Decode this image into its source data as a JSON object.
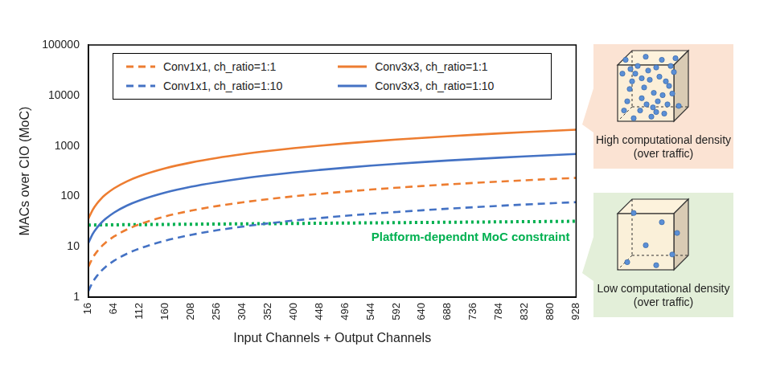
{
  "chart_data": {
    "type": "line",
    "x_label": "Input Channels + Output Channels",
    "y_label": "MACs over CIO (MoC)",
    "x": [
      16,
      24,
      32,
      40,
      48,
      64,
      88,
      112,
      160,
      208,
      256,
      304,
      352,
      400,
      448,
      496,
      544,
      592,
      640,
      688,
      736,
      784,
      832,
      880,
      928
    ],
    "series": [
      {
        "name": "Conv1x1, ch_ratio=1:1",
        "color": "#ed7d31",
        "line_style": "dashed",
        "marker": "none",
        "values": [
          4,
          6,
          8,
          10,
          12,
          16,
          22,
          28,
          40,
          52,
          64,
          76,
          88,
          100,
          112,
          124,
          136,
          148,
          160,
          172,
          184,
          196,
          208,
          220,
          232
        ]
      },
      {
        "name": "Conv3x3, ch_ratio=1:1",
        "color": "#ed7d31",
        "line_style": "solid",
        "marker": "none",
        "values": [
          36,
          54,
          72,
          90,
          108,
          144,
          198,
          252,
          360,
          468,
          576,
          684,
          792,
          900,
          1008,
          1116,
          1224,
          1332,
          1440,
          1548,
          1656,
          1764,
          1872,
          1980,
          2088
        ]
      },
      {
        "name": "Conv1x1, ch_ratio=1:10",
        "color": "#4472c4",
        "line_style": "dashed",
        "marker": "none",
        "values": [
          1.32,
          1.98,
          2.64,
          3.31,
          3.97,
          5.29,
          7.27,
          9.26,
          13.2,
          17.2,
          21.2,
          25.1,
          29.1,
          33.1,
          37.0,
          41.0,
          45.0,
          48.9,
          52.9,
          56.9,
          60.8,
          64.8,
          68.8,
          72.7,
          76.7
        ]
      },
      {
        "name": "Conv3x3, ch_ratio=1:10",
        "color": "#4472c4",
        "line_style": "solid",
        "marker": "none",
        "values": [
          11.9,
          17.9,
          23.8,
          29.8,
          35.7,
          47.6,
          65.5,
          83.3,
          119,
          155,
          190,
          226,
          262,
          298,
          333,
          369,
          405,
          440,
          476,
          512,
          547,
          583,
          619,
          655,
          690
        ]
      }
    ],
    "constraint": {
      "label": "Platform-dependnt MoC constraint",
      "x": [
        16,
        928
      ],
      "values": [
        27,
        32
      ],
      "color": "#00b050",
      "line_style": "dotted"
    },
    "callouts": [
      {
        "text": "High computational density (over traffic)",
        "color": "#fbe3d3"
      },
      {
        "text": "Low computational density (over traffic)",
        "color": "#e3efd9"
      }
    ],
    "xlim": [
      16,
      928
    ],
    "xticks": [
      16,
      64,
      112,
      160,
      208,
      256,
      304,
      352,
      400,
      448,
      496,
      544,
      592,
      640,
      688,
      736,
      784,
      832,
      880,
      928
    ],
    "ylim": [
      1,
      100000
    ],
    "yticks": [
      1,
      10,
      100,
      1000,
      10000,
      100000
    ],
    "log": "y",
    "grid": false,
    "legend": "top"
  }
}
